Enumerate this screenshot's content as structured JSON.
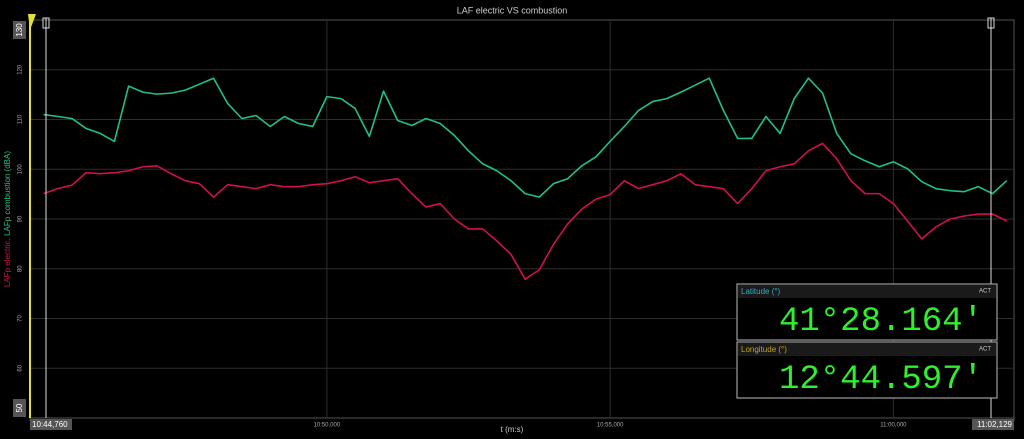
{
  "chart_data": {
    "type": "line",
    "title": "LAF electric VS combustion",
    "x_label": "t (m:s)",
    "y_label": [
      "LAFp electric,",
      " LAFp combustion (dBA)"
    ],
    "x": [
      645.0,
      645.25,
      645.5,
      645.75,
      646.0,
      646.25,
      646.5,
      646.75,
      647.0,
      647.25,
      647.5,
      647.75,
      648.0,
      648.25,
      648.5,
      648.75,
      649.0,
      649.25,
      649.5,
      649.75,
      650.0,
      650.25,
      650.5,
      650.75,
      651.0,
      651.25,
      651.5,
      651.75,
      652.0,
      652.25,
      652.5,
      652.75,
      653.0,
      653.25,
      653.5,
      653.75,
      654.0,
      654.25,
      654.5,
      654.75,
      655.0,
      655.25,
      655.5,
      655.75,
      656.0,
      656.25,
      656.5,
      656.75,
      657.0,
      657.25,
      657.5,
      657.75,
      658.0,
      658.25,
      658.5,
      658.75,
      659.0,
      659.25,
      659.5,
      659.75,
      660.0,
      660.25,
      660.5,
      660.75,
      661.0,
      661.25,
      661.5,
      661.75,
      662.0
    ],
    "series": [
      {
        "name": "LAFp electric",
        "color": "#d0104a",
        "values": [
          95.1,
          96.1,
          96.8,
          99.3,
          99.1,
          99.3,
          99.7,
          100.5,
          100.7,
          99.1,
          97.7,
          97.1,
          94.4,
          96.9,
          96.5,
          96.1,
          96.9,
          96.5,
          96.5,
          96.9,
          97.1,
          97.7,
          98.5,
          97.3,
          97.7,
          98.1,
          95.1,
          92.4,
          93.1,
          90.0,
          88.0,
          88.0,
          85.6,
          82.9,
          77.9,
          79.8,
          84.9,
          89.0,
          92.0,
          94.0,
          94.9,
          97.7,
          96.1,
          96.9,
          97.7,
          99.1,
          96.9,
          96.5,
          96.1,
          93.1,
          96.1,
          99.7,
          100.5,
          101.1,
          103.7,
          105.2,
          102.1,
          97.7,
          95.1,
          95.1,
          93.1,
          89.6,
          86.0,
          88.4,
          90.0,
          90.6,
          91.0,
          91.0,
          89.6
        ]
      },
      {
        "name": "LAFp combustion",
        "color": "#1fc08c",
        "values": [
          111.0,
          110.6,
          110.2,
          108.2,
          107.2,
          105.6,
          116.7,
          115.5,
          115.1,
          115.3,
          115.9,
          117.1,
          118.3,
          113.2,
          110.2,
          110.8,
          108.6,
          110.6,
          109.2,
          108.6,
          114.6,
          114.2,
          112.2,
          106.6,
          115.7,
          109.8,
          108.8,
          110.2,
          109.2,
          106.8,
          103.7,
          101.1,
          99.7,
          97.7,
          95.1,
          94.4,
          97.1,
          98.1,
          100.7,
          102.5,
          105.6,
          108.6,
          111.8,
          113.6,
          114.2,
          115.5,
          116.9,
          118.3,
          111.8,
          106.2,
          106.2,
          110.6,
          107.2,
          114.2,
          118.3,
          115.3,
          107.2,
          103.1,
          101.7,
          100.5,
          101.5,
          100.1,
          97.5,
          96.1,
          95.7,
          95.5,
          96.5,
          95.1,
          97.7
        ]
      }
    ],
    "xlim": [
      644.76,
      662.129
    ],
    "xticks": [
      {
        "value": 644.76,
        "label": "10:44,760"
      },
      {
        "value": 650,
        "label": "10:50,000"
      },
      {
        "value": 655,
        "label": "10:55,000"
      },
      {
        "value": 660,
        "label": "11:00,000"
      },
      {
        "value": 662.129,
        "label": "11:02,129"
      }
    ],
    "ylim": [
      50,
      130
    ],
    "yticks": [
      50,
      60,
      70,
      80,
      90,
      100,
      110,
      120,
      130
    ],
    "grid": true
  },
  "widgets": [
    {
      "label": "Latitude (°)",
      "status": "ACT",
      "value": "41°28.164'",
      "label_color": "#2fb0c8"
    },
    {
      "label": "Longitude (°)",
      "status": "ACT",
      "value": "12°44.597'",
      "label_color": "#c8a020"
    }
  ]
}
